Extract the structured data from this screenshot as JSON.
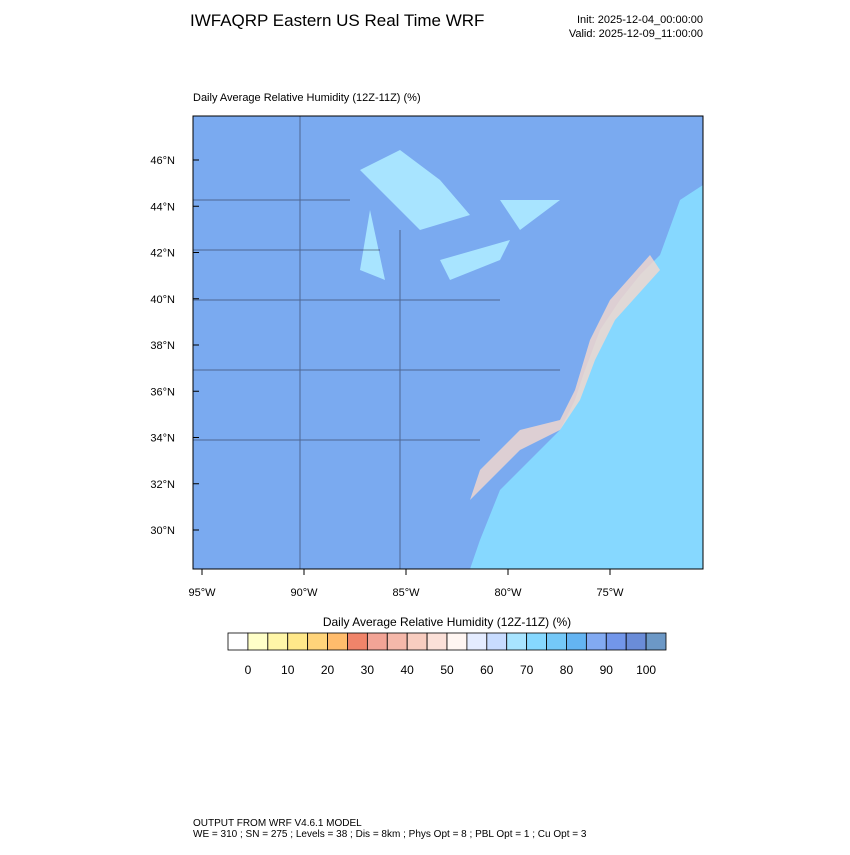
{
  "header": {
    "title": "IWFAQRP Eastern US Real Time WRF",
    "init": "Init: 2025-12-04_00:00:00",
    "valid": "Valid: 2025-12-09_11:00:00"
  },
  "map": {
    "subtitle": "Daily Average Relative Humidity (12Z-11Z)   (%)",
    "lat_labels": [
      "46°N",
      "44°N",
      "42°N",
      "40°N",
      "38°N",
      "36°N",
      "34°N",
      "32°N",
      "30°N"
    ],
    "lon_labels": [
      "95°W",
      "90°W",
      "85°W",
      "80°W",
      "75°W"
    ]
  },
  "colorbar": {
    "label": "Daily Average Relative Humidity (12Z-11Z)  (%)",
    "ticks": [
      0,
      10,
      20,
      30,
      40,
      50,
      60,
      70,
      80,
      90,
      100
    ],
    "colors": [
      "#ffffff",
      "#ffffc8",
      "#fff6a8",
      "#ffe88a",
      "#ffd47a",
      "#ffbc6c",
      "#f0846a",
      "#f2a496",
      "#f5b8aa",
      "#f8cdc0",
      "#fbe0d8",
      "#fff6f2",
      "#e4ecff",
      "#c8dcff",
      "#a8e4ff",
      "#86d8ff",
      "#74c8f8",
      "#64b4f2",
      "#82aaf2",
      "#7296ea",
      "#6a8cd8",
      "#6c98c6"
    ]
  },
  "footer": {
    "line1": "OUTPUT FROM WRF V4.6.1 MODEL",
    "line2": "WE = 310 ; SN = 275 ; Levels = 38 ; Dis = 8km ; Phys Opt = 8 ; PBL Opt = 1 ; Cu Opt = 3"
  }
}
